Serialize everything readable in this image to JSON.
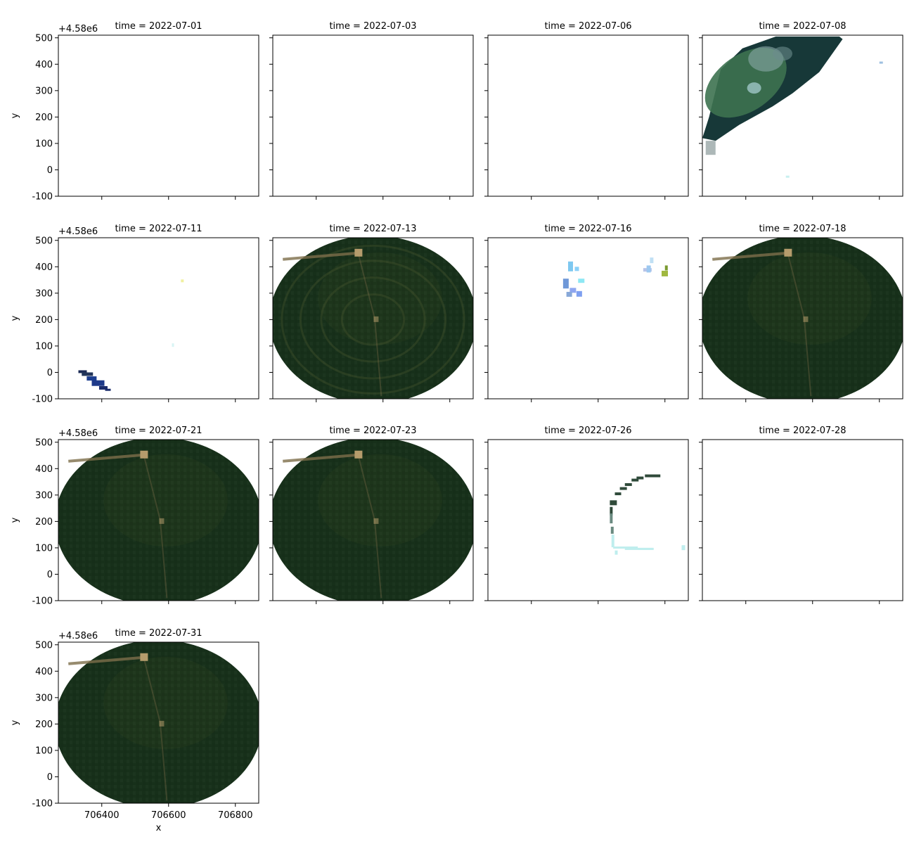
{
  "chart_data": {
    "type": "image",
    "layout": {
      "rows": 4,
      "cols": 4
    },
    "xlabel": "x",
    "ylabel": "y",
    "y_offset_label": "+4.58e6",
    "xlim": [
      706270,
      706870
    ],
    "ylim": [
      -100,
      510
    ],
    "x_ticks": [
      706400,
      706600,
      706800
    ],
    "y_ticks": [
      500,
      400,
      300,
      200,
      100,
      0,
      -100
    ],
    "panels": [
      {
        "title": "time = 2022-07-01",
        "content": "empty"
      },
      {
        "title": "time = 2022-07-03",
        "content": "empty"
      },
      {
        "title": "time = 2022-07-06",
        "content": "empty"
      },
      {
        "title": "time = 2022-07-08",
        "content": "cloud"
      },
      {
        "title": "time = 2022-07-11",
        "content": "streak"
      },
      {
        "title": "time = 2022-07-13",
        "content": "field",
        "rings": true
      },
      {
        "title": "time = 2022-07-16",
        "content": "specks"
      },
      {
        "title": "time = 2022-07-18",
        "content": "field"
      },
      {
        "title": "time = 2022-07-21",
        "content": "field"
      },
      {
        "title": "time = 2022-07-23",
        "content": "field"
      },
      {
        "title": "time = 2022-07-26",
        "content": "arc"
      },
      {
        "title": "time = 2022-07-28",
        "content": "empty"
      },
      {
        "title": "time = 2022-07-31",
        "content": "field"
      }
    ],
    "colors": {
      "field": "#17301a",
      "field_light": "#27401f",
      "cloud_dark": "#173838",
      "cloud_green": "#3d7250",
      "track": "#7d6e4a",
      "pivot": "#b59c6c",
      "streak": "#1e3a8a"
    }
  }
}
